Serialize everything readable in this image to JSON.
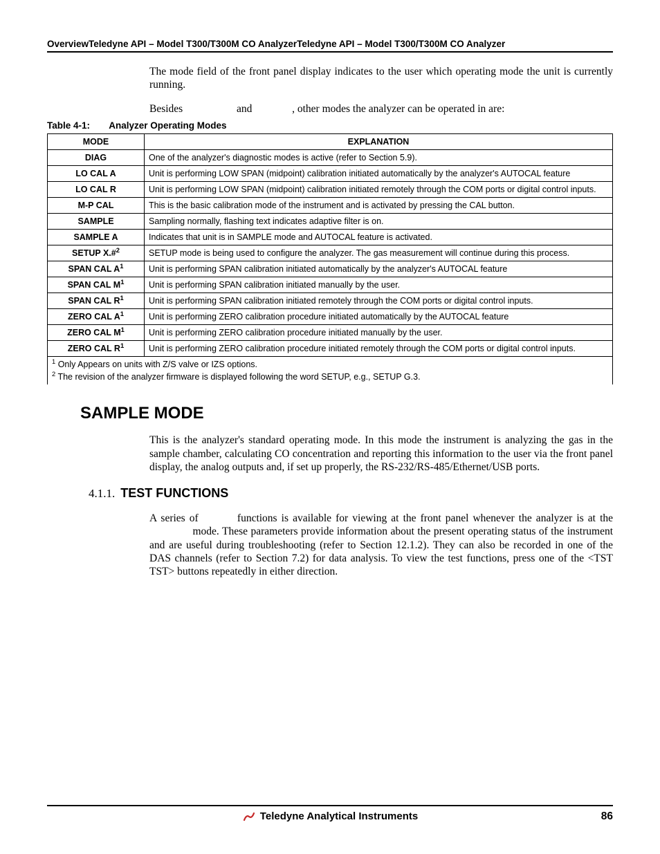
{
  "header": {
    "text": "OverviewTeledyne API – Model T300/T300M CO AnalyzerTeledyne API – Model T300/T300M CO Analyzer"
  },
  "intro": {
    "para1": "The mode field of the front panel display indicates to the user which operating mode the unit is currently running.",
    "para2a": "Besides",
    "para2b": "and",
    "para2c": ", other modes the analyzer can be operated in are:"
  },
  "table": {
    "caption_label": "Table 4-1:",
    "caption_title": "Analyzer Operating Modes",
    "headers": {
      "mode": "MODE",
      "explanation": "EXPLANATION"
    },
    "rows": [
      {
        "mode": "DIAG",
        "sup": "",
        "exp": "One of the analyzer's diagnostic modes is active (refer to Section 5.9)."
      },
      {
        "mode": "LO CAL A",
        "sup": "",
        "exp": "Unit is performing LOW SPAN (midpoint) calibration initiated automatically by the analyzer's AUTOCAL feature"
      },
      {
        "mode": "LO CAL R",
        "sup": "",
        "exp": "Unit is performing LOW SPAN (midpoint) calibration initiated remotely through the COM ports or digital control inputs."
      },
      {
        "mode": "M-P CAL",
        "sup": "",
        "exp": "This is the basic calibration mode of the instrument and is activated by pressing the CAL button."
      },
      {
        "mode": "SAMPLE",
        "sup": "",
        "exp": "Sampling normally, flashing text indicates adaptive filter is on."
      },
      {
        "mode": "SAMPLE A",
        "sup": "",
        "exp": "Indicates that unit is in SAMPLE mode and AUTOCAL feature is activated."
      },
      {
        "mode": "SETUP X.#",
        "sup": "2",
        "exp": "SETUP mode is being used to configure the analyzer. The gas measurement will continue during this process."
      },
      {
        "mode": "SPAN CAL A",
        "sup": "1",
        "exp": "Unit is performing SPAN calibration initiated automatically by the analyzer's AUTOCAL feature"
      },
      {
        "mode": "SPAN CAL M",
        "sup": "1",
        "exp": "Unit is performing SPAN calibration initiated manually by the user."
      },
      {
        "mode": "SPAN CAL R",
        "sup": "1",
        "exp": "Unit is performing SPAN calibration initiated remotely through the COM ports or digital control inputs."
      },
      {
        "mode": "ZERO CAL A",
        "sup": "1",
        "exp": "Unit is performing ZERO calibration procedure initiated automatically by the AUTOCAL feature"
      },
      {
        "mode": "ZERO CAL M",
        "sup": "1",
        "exp": "Unit is performing ZERO calibration procedure initiated manually by the user."
      },
      {
        "mode": "ZERO CAL R",
        "sup": "1",
        "exp": "Unit is performing ZERO calibration procedure initiated remotely through the COM ports or digital control inputs."
      }
    ],
    "footnote1": " Only Appears on units with Z/S valve or IZS options.",
    "footnote2": " The revision of the analyzer firmware is displayed following the word SETUP, e.g., SETUP G.3."
  },
  "sections": {
    "sample_mode": {
      "title": "SAMPLE MODE",
      "para": "This is the analyzer's standard operating mode.  In this mode the instrument is analyzing the gas in the sample chamber, calculating CO concentration and reporting this information to the user via the front panel display, the analog outputs and, if set up properly, the RS-232/RS-485/Ethernet/USB ports."
    },
    "test_functions": {
      "number": "4.1.1.",
      "title": "TEST FUNCTIONS",
      "para_a": "A series of",
      "para_b": "functions is available for viewing at the front panel whenever the analyzer is at the",
      "para_c": "mode.  These parameters provide information about the present operating status of the instrument and are useful during troubleshooting (refer to Section 12.1.2). They can also be recorded in one of the DAS channels (refer to Section 7.2) for data analysis. To view the test functions, press one of the <TST TST> buttons repeatedly in either direction."
    }
  },
  "footer": {
    "company": "Teledyne Analytical Instruments",
    "page": "86"
  },
  "colors": {
    "text": "#000000",
    "background": "#ffffff",
    "rule": "#000000",
    "logo_red": "#c62828"
  }
}
